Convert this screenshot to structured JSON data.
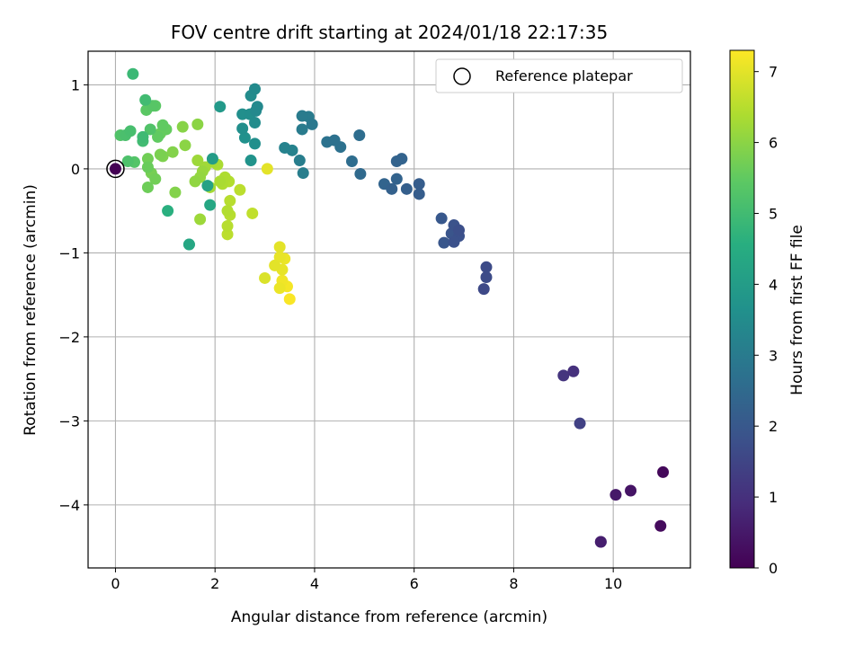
{
  "chart_data": {
    "type": "scatter",
    "title": "FOV centre drift starting at 2024/01/18 22:17:35",
    "xlabel": "Angular distance from reference (arcmin)",
    "ylabel": "Rotation from reference (arcmin)",
    "xlim": [
      -0.55,
      11.55
    ],
    "ylim": [
      -4.75,
      1.4
    ],
    "xticks": [
      0,
      2,
      4,
      6,
      8,
      10
    ],
    "yticks": [
      1,
      0,
      -1,
      -2,
      -3,
      -4
    ],
    "grid": true,
    "legend": {
      "position": "top-right",
      "entries": [
        "Reference platepar"
      ]
    },
    "reference_point": {
      "x": 0,
      "y": 0
    },
    "colorbar": {
      "label": "Hours from first FF file",
      "colormap": "viridis",
      "range": [
        0,
        7.3
      ],
      "ticks": [
        0,
        1,
        2,
        3,
        4,
        5,
        6,
        7
      ]
    },
    "points": [
      {
        "x": 0.0,
        "y": 0.0,
        "c": 0.0
      },
      {
        "x": 11.0,
        "y": -3.61,
        "c": 0.15
      },
      {
        "x": 10.95,
        "y": -4.25,
        "c": 0.2
      },
      {
        "x": 10.35,
        "y": -3.83,
        "c": 0.4
      },
      {
        "x": 10.05,
        "y": -3.88,
        "c": 0.5
      },
      {
        "x": 9.75,
        "y": -4.44,
        "c": 0.6
      },
      {
        "x": 9.75,
        "y": -4.44,
        "c": 0.9
      },
      {
        "x": 9.33,
        "y": -3.03,
        "c": 1.4
      },
      {
        "x": 9.2,
        "y": -2.41,
        "c": 1.0
      },
      {
        "x": 9.0,
        "y": -2.46,
        "c": 1.1
      },
      {
        "x": 7.45,
        "y": -1.17,
        "c": 1.65
      },
      {
        "x": 7.45,
        "y": -1.29,
        "c": 1.65
      },
      {
        "x": 7.4,
        "y": -1.43,
        "c": 1.6
      },
      {
        "x": 6.9,
        "y": -0.73,
        "c": 1.75
      },
      {
        "x": 6.9,
        "y": -0.8,
        "c": 1.8
      },
      {
        "x": 6.8,
        "y": -0.87,
        "c": 1.8
      },
      {
        "x": 6.8,
        "y": -0.67,
        "c": 1.85
      },
      {
        "x": 6.75,
        "y": -0.77,
        "c": 1.9
      },
      {
        "x": 6.6,
        "y": -0.88,
        "c": 1.95
      },
      {
        "x": 6.55,
        "y": -0.59,
        "c": 2.0
      },
      {
        "x": 6.1,
        "y": -0.18,
        "c": 2.15
      },
      {
        "x": 6.1,
        "y": -0.3,
        "c": 2.15
      },
      {
        "x": 5.85,
        "y": -0.24,
        "c": 2.2
      },
      {
        "x": 5.75,
        "y": 0.12,
        "c": 2.3
      },
      {
        "x": 5.65,
        "y": 0.09,
        "c": 2.3
      },
      {
        "x": 5.65,
        "y": -0.12,
        "c": 2.3
      },
      {
        "x": 5.55,
        "y": -0.24,
        "c": 2.25
      },
      {
        "x": 5.4,
        "y": -0.18,
        "c": 2.35
      },
      {
        "x": 4.9,
        "y": 0.4,
        "c": 2.6
      },
      {
        "x": 4.92,
        "y": -0.06,
        "c": 2.5
      },
      {
        "x": 4.75,
        "y": 0.09,
        "c": 2.6
      },
      {
        "x": 4.52,
        "y": 0.26,
        "c": 2.7
      },
      {
        "x": 4.4,
        "y": 0.34,
        "c": 2.7
      },
      {
        "x": 4.25,
        "y": 0.32,
        "c": 2.75
      },
      {
        "x": 3.95,
        "y": 0.53,
        "c": 2.9
      },
      {
        "x": 3.88,
        "y": 0.62,
        "c": 3.0
      },
      {
        "x": 3.75,
        "y": 0.63,
        "c": 3.0
      },
      {
        "x": 3.75,
        "y": 0.47,
        "c": 3.0
      },
      {
        "x": 3.77,
        "y": -0.05,
        "c": 3.1
      },
      {
        "x": 3.7,
        "y": 0.1,
        "c": 3.1
      },
      {
        "x": 3.55,
        "y": 0.22,
        "c": 3.2
      },
      {
        "x": 3.4,
        "y": 0.25,
        "c": 3.2
      },
      {
        "x": 2.85,
        "y": 0.74,
        "c": 3.4
      },
      {
        "x": 2.8,
        "y": 0.95,
        "c": 3.45
      },
      {
        "x": 2.82,
        "y": 0.69,
        "c": 3.4
      },
      {
        "x": 2.8,
        "y": 0.55,
        "c": 3.5
      },
      {
        "x": 2.72,
        "y": 0.87,
        "c": 3.5
      },
      {
        "x": 2.7,
        "y": 0.65,
        "c": 3.55
      },
      {
        "x": 2.55,
        "y": 0.65,
        "c": 3.6
      },
      {
        "x": 2.55,
        "y": 0.48,
        "c": 3.6
      },
      {
        "x": 2.6,
        "y": 0.37,
        "c": 3.65
      },
      {
        "x": 2.8,
        "y": 0.3,
        "c": 3.6
      },
      {
        "x": 2.72,
        "y": 0.1,
        "c": 3.7
      },
      {
        "x": 2.1,
        "y": 0.74,
        "c": 3.9
      },
      {
        "x": 1.95,
        "y": 0.12,
        "c": 4.0
      },
      {
        "x": 1.85,
        "y": -0.2,
        "c": 4.2
      },
      {
        "x": 1.9,
        "y": -0.43,
        "c": 4.3
      },
      {
        "x": 1.48,
        "y": -0.9,
        "c": 4.3
      },
      {
        "x": 1.48,
        "y": -0.9,
        "c": 4.5
      },
      {
        "x": 1.05,
        "y": -0.5,
        "c": 4.6
      },
      {
        "x": 0.35,
        "y": 1.13,
        "c": 4.9
      },
      {
        "x": 0.6,
        "y": 0.82,
        "c": 5.0
      },
      {
        "x": 0.55,
        "y": 0.38,
        "c": 4.95
      },
      {
        "x": 0.55,
        "y": 0.33,
        "c": 5.0
      },
      {
        "x": 0.3,
        "y": 0.45,
        "c": 5.1
      },
      {
        "x": 0.2,
        "y": 0.4,
        "c": 5.15
      },
      {
        "x": 0.1,
        "y": 0.4,
        "c": 5.25
      },
      {
        "x": 0.25,
        "y": 0.09,
        "c": 5.2
      },
      {
        "x": 0.38,
        "y": 0.08,
        "c": 5.3
      },
      {
        "x": 0.7,
        "y": 0.47,
        "c": 5.25
      },
      {
        "x": 0.75,
        "y": 0.75,
        "c": 5.35
      },
      {
        "x": 0.8,
        "y": 0.75,
        "c": 5.4
      },
      {
        "x": 0.62,
        "y": 0.7,
        "c": 5.4
      },
      {
        "x": 0.85,
        "y": 0.38,
        "c": 5.5
      },
      {
        "x": 0.95,
        "y": 0.52,
        "c": 5.5
      },
      {
        "x": 1.02,
        "y": 0.47,
        "c": 5.55
      },
      {
        "x": 0.9,
        "y": 0.42,
        "c": 5.6
      },
      {
        "x": 0.65,
        "y": 0.02,
        "c": 5.6
      },
      {
        "x": 0.65,
        "y": -0.22,
        "c": 5.65
      },
      {
        "x": 0.65,
        "y": 0.12,
        "c": 5.7
      },
      {
        "x": 0.8,
        "y": -0.12,
        "c": 5.7
      },
      {
        "x": 0.72,
        "y": -0.05,
        "c": 5.75
      },
      {
        "x": 0.9,
        "y": 0.17,
        "c": 5.8
      },
      {
        "x": 0.95,
        "y": 0.15,
        "c": 5.85
      },
      {
        "x": 1.15,
        "y": 0.2,
        "c": 5.9
      },
      {
        "x": 1.2,
        "y": -0.28,
        "c": 5.9
      },
      {
        "x": 1.35,
        "y": 0.5,
        "c": 5.95
      },
      {
        "x": 1.4,
        "y": 0.28,
        "c": 6.0
      },
      {
        "x": 1.6,
        "y": -0.15,
        "c": 6.05
      },
      {
        "x": 1.65,
        "y": 0.53,
        "c": 6.0
      },
      {
        "x": 1.7,
        "y": -0.1,
        "c": 6.1
      },
      {
        "x": 1.75,
        "y": -0.03,
        "c": 6.15
      },
      {
        "x": 1.7,
        "y": -0.6,
        "c": 6.2
      },
      {
        "x": 1.65,
        "y": 0.1,
        "c": 6.2
      },
      {
        "x": 1.8,
        "y": 0.02,
        "c": 6.25
      },
      {
        "x": 1.9,
        "y": -0.22,
        "c": 6.3
      },
      {
        "x": 1.95,
        "y": 0.08,
        "c": 6.3
      },
      {
        "x": 2.05,
        "y": 0.05,
        "c": 6.35
      },
      {
        "x": 2.1,
        "y": -0.15,
        "c": 6.35
      },
      {
        "x": 2.15,
        "y": -0.18,
        "c": 6.4
      },
      {
        "x": 2.2,
        "y": -0.1,
        "c": 6.4
      },
      {
        "x": 2.28,
        "y": -0.15,
        "c": 6.45
      },
      {
        "x": 2.25,
        "y": -0.5,
        "c": 6.45
      },
      {
        "x": 2.3,
        "y": -0.55,
        "c": 6.5
      },
      {
        "x": 2.3,
        "y": -0.38,
        "c": 6.5
      },
      {
        "x": 2.25,
        "y": -0.68,
        "c": 6.5
      },
      {
        "x": 2.25,
        "y": -0.78,
        "c": 6.55
      },
      {
        "x": 2.5,
        "y": -0.25,
        "c": 6.55
      },
      {
        "x": 2.75,
        "y": -0.53,
        "c": 6.6
      },
      {
        "x": 3.05,
        "y": 0.0,
        "c": 7.0
      },
      {
        "x": 3.0,
        "y": -1.3,
        "c": 6.9
      },
      {
        "x": 3.2,
        "y": -1.15,
        "c": 7.0
      },
      {
        "x": 3.3,
        "y": -0.93,
        "c": 7.0
      },
      {
        "x": 3.3,
        "y": -1.05,
        "c": 7.05
      },
      {
        "x": 3.35,
        "y": -1.2,
        "c": 7.05
      },
      {
        "x": 3.4,
        "y": -1.07,
        "c": 7.1
      },
      {
        "x": 3.3,
        "y": -1.42,
        "c": 7.1
      },
      {
        "x": 3.35,
        "y": -1.33,
        "c": 7.15
      },
      {
        "x": 3.45,
        "y": -1.4,
        "c": 7.2
      },
      {
        "x": 3.5,
        "y": -1.55,
        "c": 7.25
      }
    ]
  }
}
